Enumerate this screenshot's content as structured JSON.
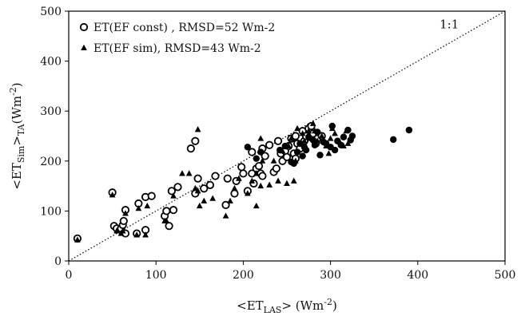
{
  "chart_data": {
    "type": "scatter",
    "xlabel": {
      "pre": "<ET",
      "sub": "LAS",
      "post": "> (Wm",
      "sup": "-2",
      "end": ")"
    },
    "ylabel": {
      "pre": "<ET",
      "sub1": "Sim",
      "mid": ">",
      "sub2": "TA",
      "post": "(Wm",
      "sup": "-2",
      "end": ")"
    },
    "xlim": [
      0,
      500
    ],
    "ylim": [
      0,
      500
    ],
    "x_ticks": [
      0,
      100,
      200,
      300,
      400,
      500
    ],
    "y_ticks": [
      0,
      100,
      200,
      300,
      400,
      500
    ],
    "grid": false,
    "legend_position": "top-left",
    "reference_line": {
      "label": "1:1",
      "x": [
        0,
        500
      ],
      "y": [
        0,
        500
      ],
      "style": "dotted"
    },
    "series": [
      {
        "name": "ET(EF const) , RMSD=52 Wm-2",
        "marker": "open-circle",
        "points": [
          [
            10,
            45
          ],
          [
            50,
            137
          ],
          [
            52,
            70
          ],
          [
            55,
            65
          ],
          [
            60,
            65
          ],
          [
            62,
            72
          ],
          [
            63,
            80
          ],
          [
            65,
            55
          ],
          [
            65,
            102
          ],
          [
            78,
            55
          ],
          [
            80,
            115
          ],
          [
            88,
            62
          ],
          [
            88,
            128
          ],
          [
            95,
            130
          ],
          [
            110,
            90
          ],
          [
            112,
            100
          ],
          [
            115,
            70
          ],
          [
            118,
            140
          ],
          [
            120,
            102
          ],
          [
            125,
            148
          ],
          [
            140,
            225
          ],
          [
            145,
            240
          ],
          [
            145,
            135
          ],
          [
            148,
            165
          ],
          [
            155,
            145
          ],
          [
            162,
            152
          ],
          [
            168,
            170
          ],
          [
            180,
            112
          ],
          [
            182,
            165
          ],
          [
            190,
            135
          ],
          [
            192,
            160
          ],
          [
            198,
            188
          ],
          [
            200,
            175
          ],
          [
            205,
            140
          ],
          [
            210,
            218
          ],
          [
            210,
            175
          ],
          [
            212,
            155
          ],
          [
            215,
            185
          ],
          [
            218,
            190
          ],
          [
            220,
            175
          ],
          [
            222,
            225
          ],
          [
            222,
            170
          ],
          [
            225,
            210
          ],
          [
            230,
            232
          ],
          [
            235,
            178
          ],
          [
            238,
            185
          ],
          [
            240,
            240
          ],
          [
            243,
            215
          ],
          [
            245,
            200
          ],
          [
            248,
            220
          ],
          [
            250,
            208
          ],
          [
            252,
            230
          ],
          [
            255,
            245
          ],
          [
            258,
            215
          ],
          [
            260,
            250
          ],
          [
            260,
            205
          ],
          [
            262,
            235
          ],
          [
            265,
            225
          ],
          [
            268,
            260
          ],
          [
            270,
            240
          ],
          [
            272,
            250
          ],
          [
            275,
            265
          ],
          [
            278,
            270
          ],
          [
            280,
            255
          ],
          [
            283,
            235
          ],
          [
            285,
            245
          ],
          [
            290,
            250
          ]
        ]
      },
      {
        "name": "ET(EF sim), RMSD=43 Wm-2",
        "marker": "filled-triangle",
        "points": [
          [
            10,
            42
          ],
          [
            50,
            132
          ],
          [
            55,
            60
          ],
          [
            60,
            55
          ],
          [
            62,
            60
          ],
          [
            65,
            95
          ],
          [
            78,
            52
          ],
          [
            80,
            105
          ],
          [
            88,
            52
          ],
          [
            90,
            110
          ],
          [
            110,
            80
          ],
          [
            112,
            80
          ],
          [
            120,
            130
          ],
          [
            130,
            175
          ],
          [
            138,
            175
          ],
          [
            145,
            145
          ],
          [
            148,
            263
          ],
          [
            148,
            140
          ],
          [
            150,
            110
          ],
          [
            155,
            120
          ],
          [
            165,
            125
          ],
          [
            180,
            90
          ],
          [
            185,
            120
          ],
          [
            190,
            145
          ],
          [
            195,
            165
          ],
          [
            205,
            135
          ],
          [
            210,
            160
          ],
          [
            215,
            175
          ],
          [
            215,
            110
          ],
          [
            220,
            245
          ],
          [
            220,
            150
          ],
          [
            222,
            200
          ],
          [
            230,
            152
          ],
          [
            235,
            200
          ],
          [
            240,
            160
          ],
          [
            245,
            220
          ],
          [
            250,
            155
          ],
          [
            252,
            230
          ],
          [
            255,
            245
          ],
          [
            258,
            160
          ],
          [
            260,
            200
          ],
          [
            262,
            265
          ],
          [
            265,
            235
          ],
          [
            268,
            255
          ],
          [
            270,
            240
          ],
          [
            275,
            260
          ],
          [
            278,
            245
          ],
          [
            280,
            275
          ],
          [
            282,
            260
          ],
          [
            285,
            240
          ],
          [
            290,
            250
          ],
          [
            295,
            230
          ],
          [
            298,
            215
          ],
          [
            300,
            245
          ],
          [
            302,
            265
          ],
          [
            305,
            255
          ],
          [
            310,
            240
          ],
          [
            315,
            230
          ],
          [
            318,
            260
          ],
          [
            320,
            235
          ]
        ]
      },
      {
        "name": "",
        "marker": "filled-circle",
        "points": [
          [
            205,
            228
          ],
          [
            215,
            205
          ],
          [
            220,
            218
          ],
          [
            242,
            222
          ],
          [
            248,
            230
          ],
          [
            255,
            198
          ],
          [
            258,
            195
          ],
          [
            262,
            218
          ],
          [
            265,
            235
          ],
          [
            268,
            210
          ],
          [
            270,
            228
          ],
          [
            272,
            222
          ],
          [
            275,
            248
          ],
          [
            280,
            242
          ],
          [
            282,
            232
          ],
          [
            285,
            258
          ],
          [
            288,
            212
          ],
          [
            292,
            238
          ],
          [
            295,
            235
          ],
          [
            300,
            228
          ],
          [
            302,
            270
          ],
          [
            305,
            222
          ],
          [
            308,
            240
          ],
          [
            312,
            232
          ],
          [
            315,
            248
          ],
          [
            320,
            262
          ],
          [
            323,
            242
          ],
          [
            325,
            250
          ],
          [
            372,
            243
          ],
          [
            390,
            262
          ]
        ]
      }
    ]
  }
}
